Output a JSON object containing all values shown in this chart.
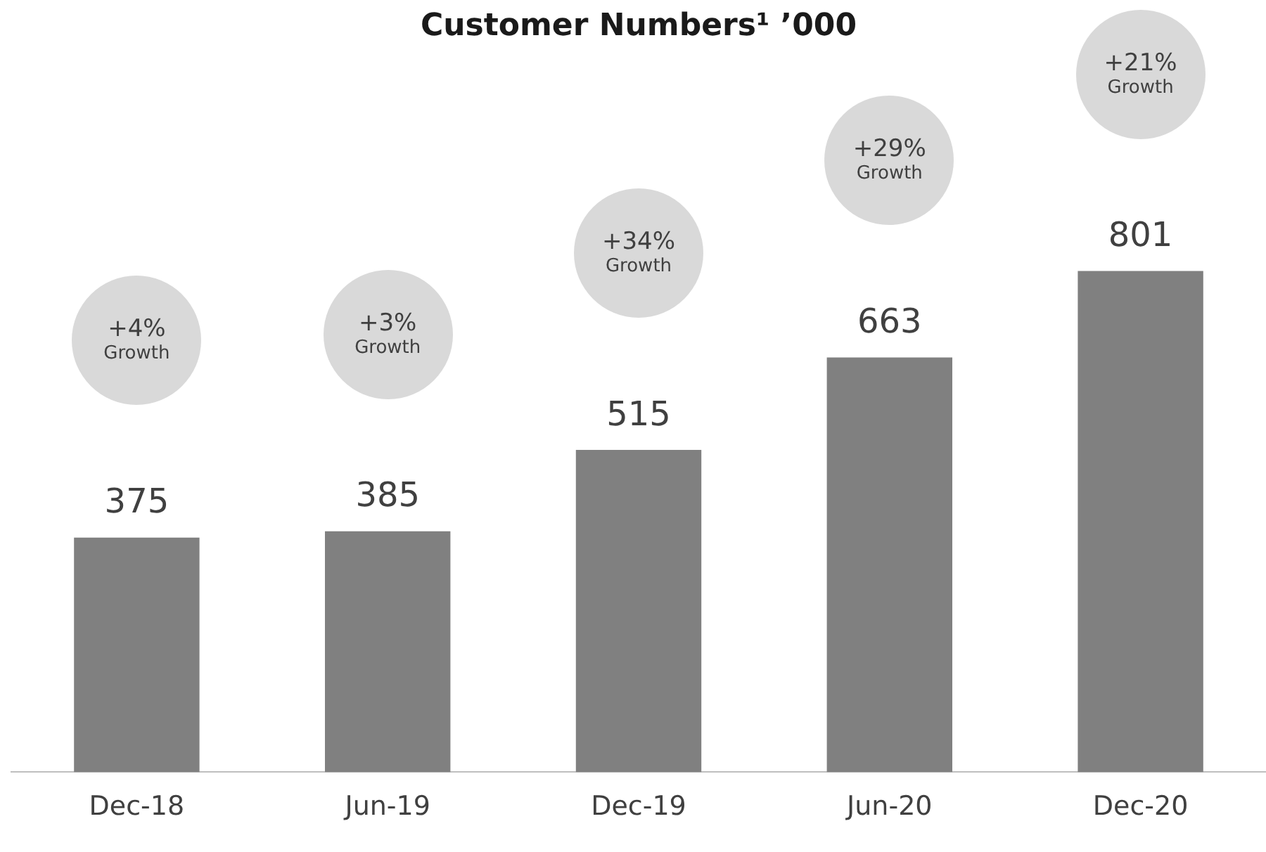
{
  "chart_data": {
    "type": "bar",
    "title": "Customer Numbers¹ ’000",
    "categories": [
      "Dec-18",
      "Jun-19",
      "Dec-19",
      "Jun-20",
      "Dec-20"
    ],
    "values": [
      375,
      385,
      515,
      663,
      801
    ],
    "color": "#808080",
    "data_labels": true,
    "grid": false,
    "legend": false,
    "tick_labels": "x",
    "annotations": [
      "+4%\nGrowth",
      "+3%\nGrowth",
      "+34%\nGrowth",
      "+29%\nGrowth",
      "+21%\nGrowth"
    ]
  }
}
